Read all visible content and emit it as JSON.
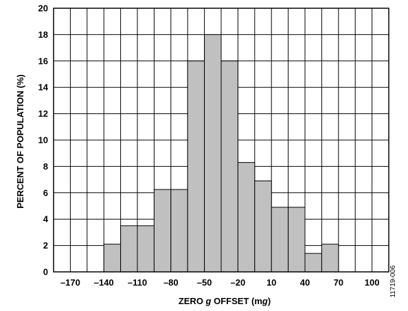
{
  "chart_data": {
    "type": "bar",
    "title": "",
    "xlabel": "ZERO g OFFSET (mg)",
    "xlabel_parts": {
      "pre": "ZERO ",
      "italic1": "g",
      "mid": " OFFSET (m",
      "italic2": "g",
      "post": ")"
    },
    "ylabel": "PERCENT OF POPULATION (%)",
    "xlim": [
      -185,
      115
    ],
    "ylim": [
      0,
      20
    ],
    "x_tick_values": [
      -170,
      -140,
      -110,
      -80,
      -50,
      -20,
      10,
      40,
      70,
      100
    ],
    "x_tick_labels": [
      "–170",
      "–140",
      "–110",
      "–80",
      "–50",
      "–20",
      "10",
      "40",
      "70",
      "100"
    ],
    "y_tick_values": [
      0,
      2,
      4,
      6,
      8,
      10,
      12,
      14,
      16,
      18,
      20
    ],
    "y_tick_labels": [
      "0",
      "2",
      "4",
      "6",
      "8",
      "10",
      "12",
      "14",
      "16",
      "18",
      "20"
    ],
    "bin_width": 15,
    "grid": true,
    "legend": "none",
    "bins": [
      {
        "from": -155,
        "to": -140,
        "value": 0
      },
      {
        "from": -140,
        "to": -125,
        "value": 2.1
      },
      {
        "from": -125,
        "to": -110,
        "value": 3.5
      },
      {
        "from": -110,
        "to": -95,
        "value": 3.5
      },
      {
        "from": -95,
        "to": -80,
        "value": 6.25
      },
      {
        "from": -80,
        "to": -65,
        "value": 6.25
      },
      {
        "from": -65,
        "to": -50,
        "value": 16
      },
      {
        "from": -50,
        "to": -35,
        "value": 18
      },
      {
        "from": -35,
        "to": -20,
        "value": 16
      },
      {
        "from": -20,
        "to": -5,
        "value": 8.3
      },
      {
        "from": -5,
        "to": 10,
        "value": 6.9
      },
      {
        "from": 10,
        "to": 25,
        "value": 4.9
      },
      {
        "from": 25,
        "to": 40,
        "value": 4.9
      },
      {
        "from": 40,
        "to": 55,
        "value": 1.4
      },
      {
        "from": 55,
        "to": 70,
        "value": 2.1
      }
    ]
  },
  "figure_id": "11719-006"
}
